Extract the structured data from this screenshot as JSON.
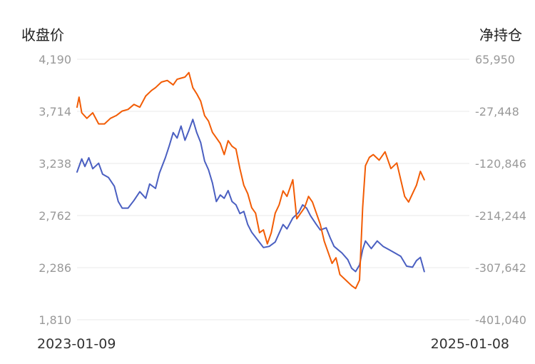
{
  "chart_data": {
    "type": "line",
    "left_axis_title": "收盘价",
    "right_axis_title": "净持仓",
    "left_ticks": [
      "4,190",
      "3,714",
      "3,238",
      "2,762",
      "2,286",
      "1,810"
    ],
    "right_ticks": [
      "65,950",
      "-27,448",
      "-120,846",
      "-214,244",
      "-307,642",
      "-401,040"
    ],
    "left_range": [
      1810,
      4190
    ],
    "right_range": [
      -401040,
      65950
    ],
    "x_start_label": "2023-01-09",
    "x_end_label": "2025-01-08",
    "x_range": [
      0,
      1
    ],
    "grid": true,
    "colors": {
      "close": "#4a5fc1",
      "net_position": "#f25c05",
      "grid": "#e8e8e8"
    },
    "series": [
      {
        "key": "close",
        "axis": "left",
        "points": [
          [
            0.0,
            3160
          ],
          [
            0.012,
            3280
          ],
          [
            0.02,
            3210
          ],
          [
            0.03,
            3290
          ],
          [
            0.04,
            3190
          ],
          [
            0.055,
            3240
          ],
          [
            0.065,
            3140
          ],
          [
            0.08,
            3110
          ],
          [
            0.095,
            3030
          ],
          [
            0.105,
            2890
          ],
          [
            0.115,
            2830
          ],
          [
            0.13,
            2830
          ],
          [
            0.145,
            2900
          ],
          [
            0.16,
            2980
          ],
          [
            0.175,
            2920
          ],
          [
            0.185,
            3050
          ],
          [
            0.2,
            3010
          ],
          [
            0.21,
            3150
          ],
          [
            0.225,
            3290
          ],
          [
            0.235,
            3400
          ],
          [
            0.245,
            3520
          ],
          [
            0.255,
            3470
          ],
          [
            0.265,
            3580
          ],
          [
            0.275,
            3450
          ],
          [
            0.285,
            3540
          ],
          [
            0.295,
            3640
          ],
          [
            0.305,
            3520
          ],
          [
            0.315,
            3430
          ],
          [
            0.325,
            3260
          ],
          [
            0.335,
            3180
          ],
          [
            0.345,
            3060
          ],
          [
            0.355,
            2890
          ],
          [
            0.365,
            2950
          ],
          [
            0.375,
            2920
          ],
          [
            0.385,
            2990
          ],
          [
            0.395,
            2890
          ],
          [
            0.405,
            2860
          ],
          [
            0.415,
            2780
          ],
          [
            0.425,
            2800
          ],
          [
            0.435,
            2680
          ],
          [
            0.445,
            2610
          ],
          [
            0.46,
            2540
          ],
          [
            0.475,
            2470
          ],
          [
            0.49,
            2480
          ],
          [
            0.505,
            2520
          ],
          [
            0.515,
            2600
          ],
          [
            0.525,
            2680
          ],
          [
            0.535,
            2640
          ],
          [
            0.55,
            2740
          ],
          [
            0.565,
            2790
          ],
          [
            0.575,
            2860
          ],
          [
            0.585,
            2830
          ],
          [
            0.595,
            2760
          ],
          [
            0.61,
            2680
          ],
          [
            0.62,
            2630
          ],
          [
            0.635,
            2650
          ],
          [
            0.645,
            2560
          ],
          [
            0.655,
            2480
          ],
          [
            0.665,
            2450
          ],
          [
            0.675,
            2420
          ],
          [
            0.69,
            2360
          ],
          [
            0.7,
            2280
          ],
          [
            0.71,
            2250
          ],
          [
            0.72,
            2310
          ],
          [
            0.728,
            2450
          ],
          [
            0.735,
            2530
          ],
          [
            0.75,
            2460
          ],
          [
            0.765,
            2530
          ],
          [
            0.78,
            2480
          ],
          [
            0.795,
            2450
          ],
          [
            0.81,
            2420
          ],
          [
            0.825,
            2390
          ],
          [
            0.84,
            2300
          ],
          [
            0.855,
            2290
          ],
          [
            0.865,
            2350
          ],
          [
            0.875,
            2380
          ],
          [
            0.885,
            2250
          ]
        ]
      },
      {
        "key": "net_position",
        "axis": "right",
        "points": [
          [
            0.0,
            -20000
          ],
          [
            0.005,
            -2000
          ],
          [
            0.012,
            -30000
          ],
          [
            0.025,
            -40000
          ],
          [
            0.04,
            -30000
          ],
          [
            0.055,
            -50000
          ],
          [
            0.07,
            -50000
          ],
          [
            0.085,
            -40000
          ],
          [
            0.1,
            -35000
          ],
          [
            0.115,
            -27000
          ],
          [
            0.13,
            -24000
          ],
          [
            0.145,
            -15000
          ],
          [
            0.16,
            -20000
          ],
          [
            0.175,
            0
          ],
          [
            0.19,
            10000
          ],
          [
            0.2,
            15000
          ],
          [
            0.215,
            25000
          ],
          [
            0.23,
            28000
          ],
          [
            0.245,
            20000
          ],
          [
            0.255,
            30000
          ],
          [
            0.265,
            32000
          ],
          [
            0.275,
            34000
          ],
          [
            0.285,
            42000
          ],
          [
            0.295,
            15000
          ],
          [
            0.305,
            4000
          ],
          [
            0.315,
            -9000
          ],
          [
            0.325,
            -35000
          ],
          [
            0.335,
            -45000
          ],
          [
            0.345,
            -65000
          ],
          [
            0.355,
            -75000
          ],
          [
            0.365,
            -85000
          ],
          [
            0.375,
            -105000
          ],
          [
            0.385,
            -80000
          ],
          [
            0.395,
            -90000
          ],
          [
            0.405,
            -95000
          ],
          [
            0.415,
            -130000
          ],
          [
            0.425,
            -160000
          ],
          [
            0.435,
            -175000
          ],
          [
            0.445,
            -200000
          ],
          [
            0.455,
            -210000
          ],
          [
            0.465,
            -245000
          ],
          [
            0.475,
            -240000
          ],
          [
            0.485,
            -265000
          ],
          [
            0.495,
            -245000
          ],
          [
            0.505,
            -210000
          ],
          [
            0.515,
            -195000
          ],
          [
            0.525,
            -170000
          ],
          [
            0.535,
            -180000
          ],
          [
            0.55,
            -150000
          ],
          [
            0.56,
            -220000
          ],
          [
            0.57,
            -210000
          ],
          [
            0.58,
            -200000
          ],
          [
            0.59,
            -180000
          ],
          [
            0.6,
            -190000
          ],
          [
            0.61,
            -210000
          ],
          [
            0.62,
            -230000
          ],
          [
            0.63,
            -260000
          ],
          [
            0.64,
            -280000
          ],
          [
            0.65,
            -300000
          ],
          [
            0.66,
            -290000
          ],
          [
            0.67,
            -320000
          ],
          [
            0.685,
            -330000
          ],
          [
            0.7,
            -340000
          ],
          [
            0.71,
            -345000
          ],
          [
            0.72,
            -330000
          ],
          [
            0.728,
            -200000
          ],
          [
            0.735,
            -125000
          ],
          [
            0.745,
            -110000
          ],
          [
            0.755,
            -105000
          ],
          [
            0.77,
            -115000
          ],
          [
            0.785,
            -100000
          ],
          [
            0.8,
            -130000
          ],
          [
            0.815,
            -120000
          ],
          [
            0.825,
            -150000
          ],
          [
            0.835,
            -180000
          ],
          [
            0.845,
            -190000
          ],
          [
            0.855,
            -175000
          ],
          [
            0.865,
            -160000
          ],
          [
            0.875,
            -135000
          ],
          [
            0.885,
            -150000
          ]
        ]
      }
    ]
  }
}
